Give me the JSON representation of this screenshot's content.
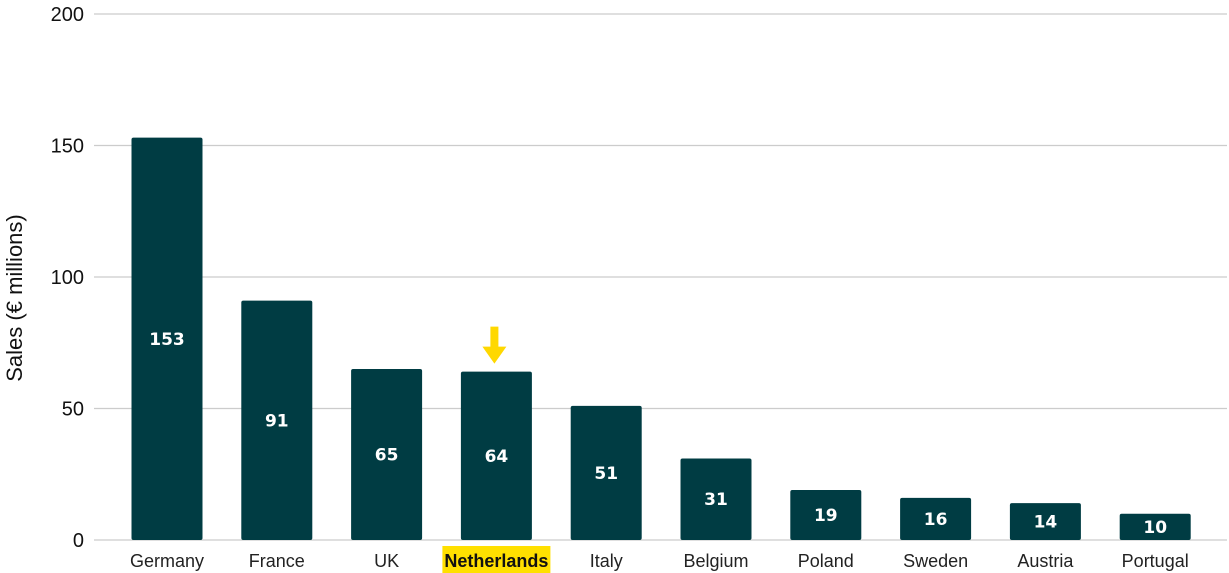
{
  "chart_data": {
    "type": "bar",
    "title": "",
    "xlabel": "",
    "ylabel": "Sales (€ millions)",
    "ylim": [
      0,
      200
    ],
    "yticks": [
      0,
      50,
      100,
      150,
      200
    ],
    "grid": true,
    "categories": [
      "Germany",
      "France",
      "UK",
      "Netherlands",
      "Italy",
      "Belgium",
      "Poland",
      "Sweden",
      "Austria",
      "Portugal"
    ],
    "values": [
      153,
      91,
      65,
      64,
      51,
      31,
      19,
      16,
      14,
      10
    ],
    "highlight": {
      "category": "Netherlands",
      "marker": "arrow-down-icon",
      "marker_color": "#ffd800",
      "label_background": "#ffe000"
    },
    "colors": {
      "bar": "#003c43",
      "grid": "#cccccc",
      "bar_label": "#ffffff"
    }
  }
}
